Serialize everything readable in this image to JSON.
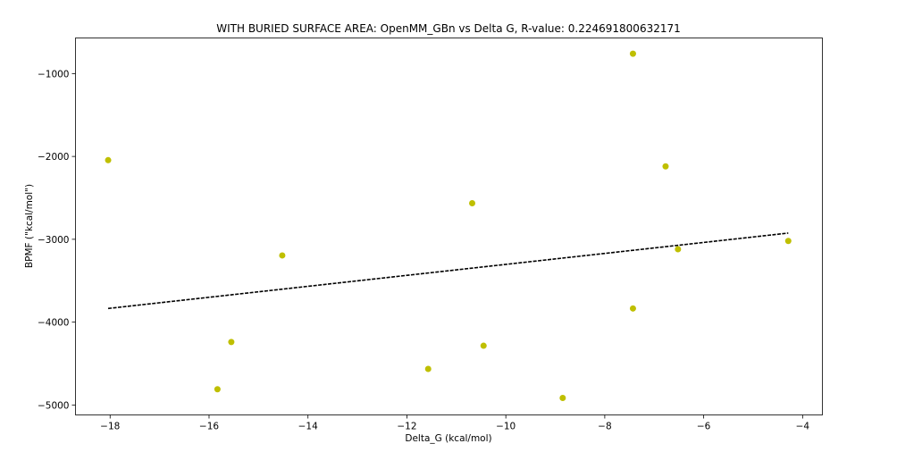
{
  "chart_data": {
    "type": "scatter",
    "title": "WITH BURIED SURFACE AREA: OpenMM_GBn vs Delta G, R-value: 0.224691800632171",
    "xlabel": "Delta_G (kcal/mol)",
    "ylabel": "BPMF (\"kcal/mol\")",
    "xlim": [
      -18.7,
      -3.6
    ],
    "ylim": [
      -5120,
      -570
    ],
    "x_ticks": [
      -18,
      -16,
      -14,
      -12,
      -10,
      -8,
      -6,
      -4
    ],
    "y_ticks": [
      -5000,
      -4000,
      -3000,
      -2000,
      -1000
    ],
    "x_tick_labels": [
      "−18",
      "−16",
      "−14",
      "−12",
      "−10",
      "−8",
      "−6",
      "−4"
    ],
    "y_tick_labels": [
      "−5000",
      "−4000",
      "−3000",
      "−2000",
      "−1000"
    ],
    "grid": false,
    "marker_color": "#bfbf00",
    "line_color": "#000000",
    "series": [
      {
        "points": [
          {
            "x": -18.04,
            "y": -2045
          },
          {
            "x": -15.83,
            "y": -4810
          },
          {
            "x": -15.55,
            "y": -4240
          },
          {
            "x": -14.52,
            "y": -3195
          },
          {
            "x": -11.57,
            "y": -4565
          },
          {
            "x": -10.68,
            "y": -2565
          },
          {
            "x": -10.45,
            "y": -4285
          },
          {
            "x": -8.85,
            "y": -4915
          },
          {
            "x": -7.43,
            "y": -760
          },
          {
            "x": -7.43,
            "y": -3835
          },
          {
            "x": -6.77,
            "y": -2120
          },
          {
            "x": -6.52,
            "y": -3120
          },
          {
            "x": -4.29,
            "y": -3020
          }
        ]
      }
    ],
    "fit_line": {
      "style": "dashed",
      "points": [
        {
          "x": -18.04,
          "y": -3835
        },
        {
          "x": -4.29,
          "y": -2925
        }
      ]
    }
  }
}
